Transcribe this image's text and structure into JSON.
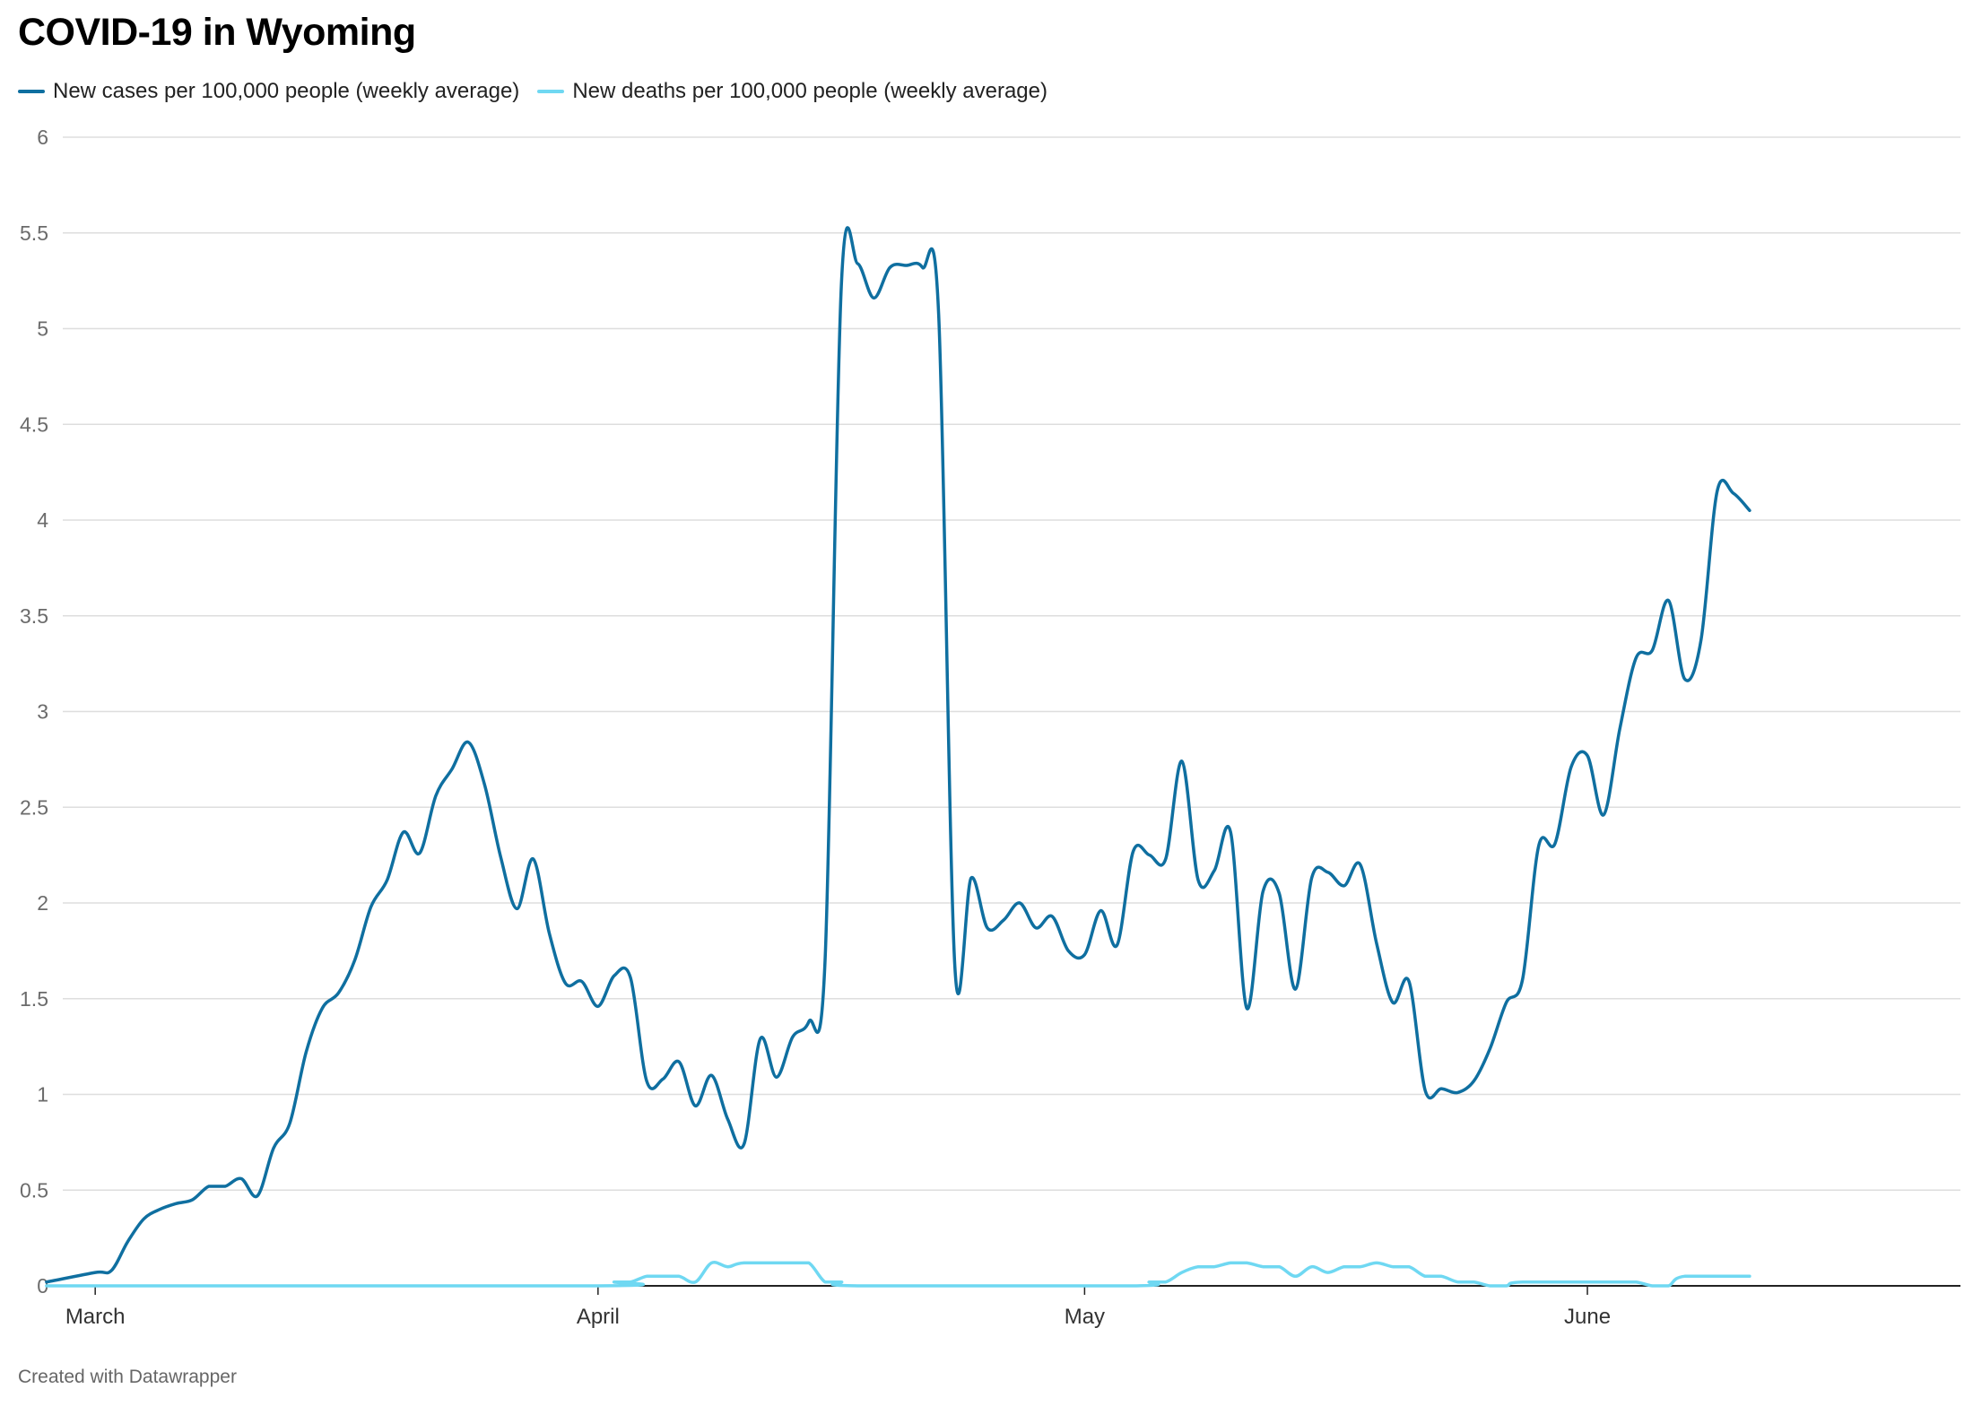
{
  "chart_data": {
    "type": "line",
    "title": "COVID-19 in Wyoming",
    "footer": "Created with Datawrapper",
    "ylim": [
      0,
      6
    ],
    "yticks": [
      0,
      0.5,
      1,
      1.5,
      2,
      2.5,
      3,
      3.5,
      4,
      4.5,
      5,
      5.5,
      6
    ],
    "xlim": [
      "2020-02-28",
      "2020-06-24"
    ],
    "grid": true,
    "legend_position": "top-left",
    "xticks": [
      {
        "date": "2020-03-01",
        "label": "March"
      },
      {
        "date": "2020-04-01",
        "label": "April"
      },
      {
        "date": "2020-05-01",
        "label": "May"
      },
      {
        "date": "2020-06-01",
        "label": "June"
      }
    ],
    "series": [
      {
        "name": "New cases per 100,000 people (weekly average)",
        "color": "#0f6fa0",
        "points": [
          [
            "2020-02-27",
            0.02
          ],
          [
            "2020-03-01",
            0.07
          ],
          [
            "2020-03-02",
            0.08
          ],
          [
            "2020-03-03",
            0.23
          ],
          [
            "2020-03-04",
            0.35
          ],
          [
            "2020-03-05",
            0.4
          ],
          [
            "2020-03-06",
            0.43
          ],
          [
            "2020-03-07",
            0.45
          ],
          [
            "2020-03-08",
            0.52
          ],
          [
            "2020-03-09",
            0.52
          ],
          [
            "2020-03-10",
            0.56
          ],
          [
            "2020-03-11",
            0.47
          ],
          [
            "2020-03-12",
            0.72
          ],
          [
            "2020-03-13",
            0.85
          ],
          [
            "2020-03-14",
            1.22
          ],
          [
            "2020-03-15",
            1.45
          ],
          [
            "2020-03-16",
            1.53
          ],
          [
            "2020-03-17",
            1.7
          ],
          [
            "2020-03-18",
            1.98
          ],
          [
            "2020-03-19",
            2.12
          ],
          [
            "2020-03-20",
            2.37
          ],
          [
            "2020-03-21",
            2.26
          ],
          [
            "2020-03-22",
            2.56
          ],
          [
            "2020-03-23",
            2.7
          ],
          [
            "2020-03-24",
            2.84
          ],
          [
            "2020-03-25",
            2.62
          ],
          [
            "2020-03-26",
            2.24
          ],
          [
            "2020-03-27",
            1.97
          ],
          [
            "2020-03-28",
            2.23
          ],
          [
            "2020-03-29",
            1.84
          ],
          [
            "2020-03-30",
            1.58
          ],
          [
            "2020-03-31",
            1.59
          ],
          [
            "2020-04-01",
            1.46
          ],
          [
            "2020-04-02",
            1.62
          ],
          [
            "2020-04-03",
            1.61
          ],
          [
            "2020-04-04",
            1.07
          ],
          [
            "2020-04-05",
            1.08
          ],
          [
            "2020-04-06",
            1.17
          ],
          [
            "2020-04-07",
            0.94
          ],
          [
            "2020-04-08",
            1.1
          ],
          [
            "2020-04-09",
            0.87
          ],
          [
            "2020-04-10",
            0.74
          ],
          [
            "2020-04-11",
            1.29
          ],
          [
            "2020-04-12",
            1.09
          ],
          [
            "2020-04-13",
            1.3
          ],
          [
            "2020-04-14",
            1.38
          ],
          [
            "2020-04-15",
            1.7
          ],
          [
            "2020-04-16",
            5.22
          ],
          [
            "2020-04-17",
            5.34
          ],
          [
            "2020-04-18",
            5.16
          ],
          [
            "2020-04-19",
            5.32
          ],
          [
            "2020-04-20",
            5.33
          ],
          [
            "2020-04-21",
            5.32
          ],
          [
            "2020-04-22",
            5.08
          ],
          [
            "2020-04-23",
            1.67
          ],
          [
            "2020-04-24",
            2.13
          ],
          [
            "2020-04-25",
            1.87
          ],
          [
            "2020-04-26",
            1.91
          ],
          [
            "2020-04-27",
            2.0
          ],
          [
            "2020-04-28",
            1.87
          ],
          [
            "2020-04-29",
            1.93
          ],
          [
            "2020-04-30",
            1.75
          ],
          [
            "2020-05-01",
            1.73
          ],
          [
            "2020-05-02",
            1.96
          ],
          [
            "2020-05-03",
            1.78
          ],
          [
            "2020-05-04",
            2.27
          ],
          [
            "2020-05-05",
            2.25
          ],
          [
            "2020-05-06",
            2.23
          ],
          [
            "2020-05-07",
            2.74
          ],
          [
            "2020-05-08",
            2.12
          ],
          [
            "2020-05-09",
            2.17
          ],
          [
            "2020-05-10",
            2.37
          ],
          [
            "2020-05-11",
            1.45
          ],
          [
            "2020-05-12",
            2.06
          ],
          [
            "2020-05-13",
            2.05
          ],
          [
            "2020-05-14",
            1.55
          ],
          [
            "2020-05-15",
            2.13
          ],
          [
            "2020-05-16",
            2.16
          ],
          [
            "2020-05-17",
            2.09
          ],
          [
            "2020-05-18",
            2.2
          ],
          [
            "2020-05-19",
            1.79
          ],
          [
            "2020-05-20",
            1.48
          ],
          [
            "2020-05-21",
            1.59
          ],
          [
            "2020-05-22",
            1.02
          ],
          [
            "2020-05-23",
            1.03
          ],
          [
            "2020-05-24",
            1.01
          ],
          [
            "2020-05-25",
            1.07
          ],
          [
            "2020-05-26",
            1.24
          ],
          [
            "2020-05-27",
            1.48
          ],
          [
            "2020-05-28",
            1.6
          ],
          [
            "2020-05-29",
            2.3
          ],
          [
            "2020-05-30",
            2.31
          ],
          [
            "2020-05-31",
            2.71
          ],
          [
            "2020-06-01",
            2.77
          ],
          [
            "2020-06-02",
            2.46
          ],
          [
            "2020-06-03",
            2.91
          ],
          [
            "2020-06-04",
            3.28
          ],
          [
            "2020-06-05",
            3.32
          ],
          [
            "2020-06-06",
            3.58
          ],
          [
            "2020-06-07",
            3.17
          ],
          [
            "2020-06-08",
            3.37
          ],
          [
            "2020-06-09",
            4.15
          ],
          [
            "2020-06-10",
            4.14
          ],
          [
            "2020-06-11",
            4.05
          ]
        ]
      },
      {
        "name": "New deaths per 100,000 people (weekly average)",
        "color": "#6fd8f2",
        "points": [
          [
            "2020-02-27",
            0
          ],
          [
            "2020-04-01",
            0
          ],
          [
            "2020-04-02",
            0.02
          ],
          [
            "2020-04-03",
            0.02
          ],
          [
            "2020-04-04",
            0.05
          ],
          [
            "2020-04-05",
            0.05
          ],
          [
            "2020-04-06",
            0.05
          ],
          [
            "2020-04-07",
            0.02
          ],
          [
            "2020-04-08",
            0.12
          ],
          [
            "2020-04-09",
            0.1
          ],
          [
            "2020-04-10",
            0.12
          ],
          [
            "2020-04-13",
            0.12
          ],
          [
            "2020-04-14",
            0.12
          ],
          [
            "2020-04-15",
            0.02
          ],
          [
            "2020-04-16",
            0.02
          ],
          [
            "2020-04-17",
            0
          ],
          [
            "2020-05-04",
            0
          ],
          [
            "2020-05-05",
            0.02
          ],
          [
            "2020-05-06",
            0.02
          ],
          [
            "2020-05-07",
            0.07
          ],
          [
            "2020-05-08",
            0.1
          ],
          [
            "2020-05-09",
            0.1
          ],
          [
            "2020-05-10",
            0.12
          ],
          [
            "2020-05-11",
            0.12
          ],
          [
            "2020-05-12",
            0.1
          ],
          [
            "2020-05-13",
            0.1
          ],
          [
            "2020-05-14",
            0.05
          ],
          [
            "2020-05-15",
            0.1
          ],
          [
            "2020-05-16",
            0.07
          ],
          [
            "2020-05-17",
            0.1
          ],
          [
            "2020-05-18",
            0.1
          ],
          [
            "2020-05-19",
            0.12
          ],
          [
            "2020-05-20",
            0.1
          ],
          [
            "2020-05-21",
            0.1
          ],
          [
            "2020-05-22",
            0.05
          ],
          [
            "2020-05-23",
            0.05
          ],
          [
            "2020-05-24",
            0.02
          ],
          [
            "2020-05-25",
            0.02
          ],
          [
            "2020-05-26",
            0
          ],
          [
            "2020-05-27",
            0
          ],
          [
            "2020-05-28",
            0.02
          ],
          [
            "2020-06-03",
            0.02
          ],
          [
            "2020-06-04",
            0.02
          ],
          [
            "2020-06-05",
            0
          ],
          [
            "2020-06-06",
            0
          ],
          [
            "2020-06-07",
            0.05
          ],
          [
            "2020-06-11",
            0.05
          ]
        ]
      }
    ]
  }
}
